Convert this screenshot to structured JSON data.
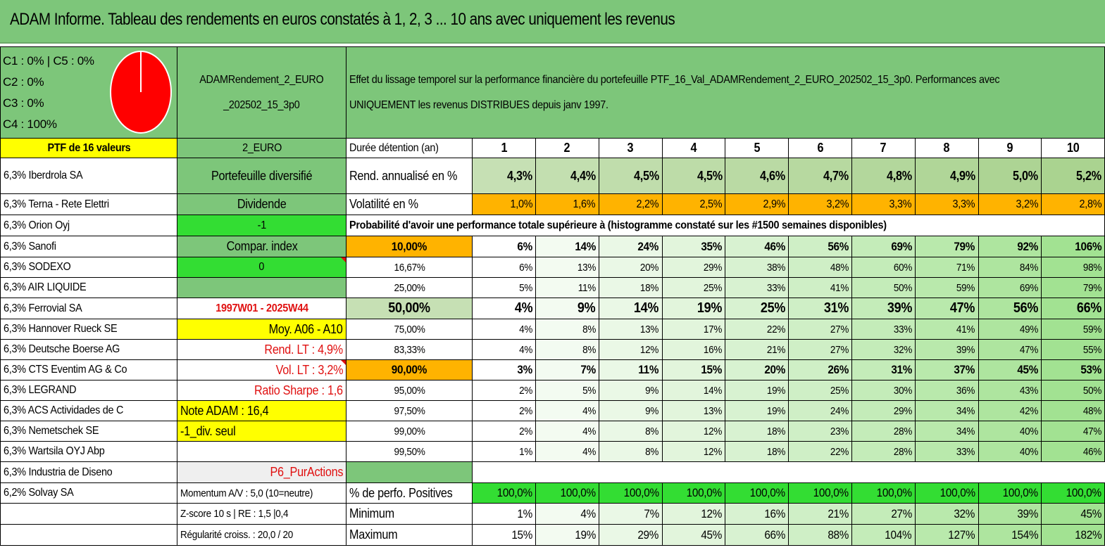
{
  "title": "ADAM Informe. Tableau des rendements en euros constatés à 1, 2, 3 ... 10 ans avec uniquement les revenus",
  "pie": {
    "labels": [
      "C1 : 0% | C5 : 0%",
      "C2 : 0%",
      "C3 : 0%",
      "C4 : 100%"
    ],
    "fill_color": "#ff0000"
  },
  "portfolio_name": "ADAMRendement_2_EURO _202502_15_3p0",
  "description": "Effet du lissage temporel sur la performance financière du portefeuille PTF_16_Val_ADAMRendement_2_EURO_202502_15_3p0. Performances avec UNIQUEMENT les revenus DISTRIBUES depuis janv 1997.",
  "ptf_label": "PTF de 16 valeurs",
  "currency": "2_EURO",
  "holdings": [
    "6,3% Iberdrola SA",
    "6,3% Terna - Rete Elettri",
    "6,3% Orion Oyj",
    "6,3% Sanofi",
    "6,3% SODEXO",
    "6,3% AIR LIQUIDE",
    "6,3% Ferrovial SA",
    "6,3% Hannover Rueck SE",
    "6,3% Deutsche Boerse AG",
    "6,3% CTS Eventim AG & Co",
    "6,3% LEGRAND",
    "6,3% ACS Actividades de C",
    "6,3% Nemetschek SE",
    "6,3% Wartsila OYJ Abp",
    "6,3% Industria de Diseno",
    "6,2% Solvay SA"
  ],
  "info": {
    "portefeuille": "Portefeuille diversifié",
    "dividende": "Dividende",
    "minus_one": "-1",
    "compar_index": "Compar. index",
    "zero": "0",
    "blank": "",
    "period": "1997W01 - 2025W44",
    "moy": "Moy. A06 - A10",
    "rend_lt": "Rend. LT : 4,9%",
    "vol_lt": "Vol. LT : 3,2%",
    "sharpe": "Ratio Sharpe : 1,6",
    "note": "Note ADAM : 16,4",
    "div_seul": "-1_div. seul",
    "p6": "P6_PurActions",
    "momentum": "Momentum A/V : 5,0 (10=neutre)",
    "zscore": "Z-score 10 s | RE : 1,5 |0,4",
    "regularite": "Régularité croiss. : 20,0 / 20"
  },
  "duration_label": "Durée détention (an)",
  "years": [
    "1",
    "2",
    "3",
    "4",
    "5",
    "6",
    "7",
    "8",
    "9",
    "10"
  ],
  "rend_label": "Rend. annualisé en %",
  "rend": [
    "4,3%",
    "4,4%",
    "4,5%",
    "4,5%",
    "4,6%",
    "4,7%",
    "4,8%",
    "4,9%",
    "5,0%",
    "5,2%"
  ],
  "vol_label": "Volatilité en %",
  "vol": [
    "1,0%",
    "1,6%",
    "2,2%",
    "2,5%",
    "2,9%",
    "3,2%",
    "3,3%",
    "3,3%",
    "3,2%",
    "2,8%"
  ],
  "prob_header": "Probabilité d'avoir une performance totale supérieure à (histogramme constaté sur les #1500 semaines disponibles)",
  "prob_rows": [
    {
      "label": "10,00%",
      "values": [
        "6%",
        "14%",
        "24%",
        "35%",
        "46%",
        "56%",
        "69%",
        "79%",
        "92%",
        "106%"
      ]
    },
    {
      "label": "16,67%",
      "values": [
        "6%",
        "13%",
        "20%",
        "29%",
        "38%",
        "48%",
        "60%",
        "71%",
        "84%",
        "98%"
      ]
    },
    {
      "label": "25,00%",
      "values": [
        "5%",
        "11%",
        "18%",
        "25%",
        "33%",
        "41%",
        "50%",
        "59%",
        "69%",
        "79%"
      ]
    },
    {
      "label": "50,00%",
      "values": [
        "4%",
        "9%",
        "14%",
        "19%",
        "25%",
        "31%",
        "39%",
        "47%",
        "56%",
        "66%"
      ]
    },
    {
      "label": "75,00%",
      "values": [
        "4%",
        "8%",
        "13%",
        "17%",
        "22%",
        "27%",
        "33%",
        "41%",
        "49%",
        "59%"
      ]
    },
    {
      "label": "83,33%",
      "values": [
        "4%",
        "8%",
        "12%",
        "16%",
        "21%",
        "27%",
        "32%",
        "39%",
        "47%",
        "55%"
      ]
    },
    {
      "label": "90,00%",
      "values": [
        "3%",
        "7%",
        "11%",
        "15%",
        "20%",
        "26%",
        "31%",
        "37%",
        "45%",
        "53%"
      ]
    },
    {
      "label": "95,00%",
      "values": [
        "2%",
        "5%",
        "9%",
        "14%",
        "19%",
        "25%",
        "30%",
        "36%",
        "43%",
        "50%"
      ]
    },
    {
      "label": "97,50%",
      "values": [
        "2%",
        "4%",
        "9%",
        "13%",
        "19%",
        "24%",
        "29%",
        "34%",
        "42%",
        "48%"
      ]
    },
    {
      "label": "99,00%",
      "values": [
        "2%",
        "4%",
        "8%",
        "12%",
        "18%",
        "23%",
        "28%",
        "34%",
        "40%",
        "47%"
      ]
    },
    {
      "label": "99,50%",
      "values": [
        "1%",
        "4%",
        "8%",
        "12%",
        "18%",
        "22%",
        "28%",
        "33%",
        "40%",
        "46%"
      ]
    }
  ],
  "pos_label": "% de perfo. Positives",
  "pos": [
    "100,0%",
    "100,0%",
    "100,0%",
    "100,0%",
    "100,0%",
    "100,0%",
    "100,0%",
    "100,0%",
    "100,0%",
    "100,0%"
  ],
  "min_label": "Minimum",
  "min": [
    "1%",
    "4%",
    "7%",
    "12%",
    "16%",
    "21%",
    "27%",
    "32%",
    "39%",
    "45%"
  ],
  "max_label": "Maximum",
  "max": [
    "15%",
    "19%",
    "29%",
    "45%",
    "66%",
    "88%",
    "104%",
    "127%",
    "154%",
    "182%"
  ],
  "colors": {
    "header_green": "#7dc67a",
    "bright_green": "#33dd33",
    "yellow": "#ffff00",
    "orange": "#ffb300",
    "red_text": "#e01010"
  }
}
